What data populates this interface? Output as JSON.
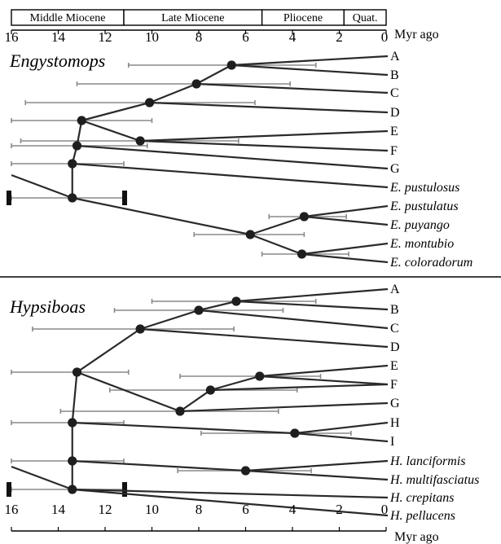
{
  "timescale": {
    "epochs": [
      {
        "name": "Middle Miocene",
        "start": 16,
        "end": 11.2
      },
      {
        "name": "Late Miocene",
        "start": 11.2,
        "end": 5.3
      },
      {
        "name": "Pliocene",
        "start": 5.3,
        "end": 1.8
      },
      {
        "name": "Quat.",
        "start": 1.8,
        "end": 0
      }
    ],
    "ticks": [
      16,
      14,
      12,
      10,
      8,
      6,
      4,
      2,
      0
    ],
    "tick_labels": [
      "16",
      "14",
      "12",
      "10",
      "8",
      "6",
      "4",
      "2",
      "0"
    ],
    "unit": "Myr ago",
    "range": [
      16,
      0
    ]
  },
  "panels": [
    {
      "genus": "Engystomops",
      "tips": [
        {
          "label": "A",
          "italic": false
        },
        {
          "label": "B",
          "italic": false
        },
        {
          "label": "C",
          "italic": false
        },
        {
          "label": "D",
          "italic": false
        },
        {
          "label": "E",
          "italic": false
        },
        {
          "label": "F",
          "italic": false
        },
        {
          "label": "G",
          "italic": false
        },
        {
          "label": "E. pustulosus",
          "italic": true
        },
        {
          "label": "E. pustulatus",
          "italic": true
        },
        {
          "label": "E. puyango",
          "italic": true
        },
        {
          "label": "E. montubio",
          "italic": true
        },
        {
          "label": "E. coloradorum",
          "italic": true
        }
      ],
      "nodes": [
        {
          "age": 6.6,
          "hpd": [
            11.0,
            3.0
          ]
        },
        {
          "age": 8.1,
          "hpd": [
            13.2,
            4.1
          ]
        },
        {
          "age": 10.1,
          "hpd": [
            15.4,
            5.6
          ]
        },
        {
          "age": 13.0,
          "hpd": [
            16.0,
            10.0
          ]
        },
        {
          "age": 10.5,
          "hpd": [
            15.6,
            6.3
          ]
        },
        {
          "age": 13.2,
          "hpd": [
            16.0,
            10.2
          ]
        },
        {
          "age": 13.4,
          "hpd": [
            16.0,
            11.2
          ]
        },
        {
          "age": 13.4,
          "hpd": [
            16.0,
            11.2
          ]
        },
        {
          "age": 3.5,
          "hpd": [
            5.0,
            1.7
          ]
        },
        {
          "age": 5.8,
          "hpd": [
            8.2,
            3.5
          ]
        },
        {
          "age": 3.6,
          "hpd": [
            5.3,
            1.6
          ]
        }
      ]
    },
    {
      "genus": "Hypsiboas",
      "tips": [
        {
          "label": "A",
          "italic": false
        },
        {
          "label": "B",
          "italic": false
        },
        {
          "label": "C",
          "italic": false
        },
        {
          "label": "D",
          "italic": false
        },
        {
          "label": "E",
          "italic": false
        },
        {
          "label": "F",
          "italic": false
        },
        {
          "label": "G",
          "italic": false
        },
        {
          "label": "H",
          "italic": false
        },
        {
          "label": "I",
          "italic": false
        },
        {
          "label": "H. lanciformis",
          "italic": true
        },
        {
          "label": "H. multifasciatus",
          "italic": true
        },
        {
          "label": "H. crepitans",
          "italic": true
        },
        {
          "label": "H. pellucens",
          "italic": true
        }
      ],
      "nodes": [
        {
          "age": 6.4,
          "hpd": [
            10.0,
            3.0
          ]
        },
        {
          "age": 8.0,
          "hpd": [
            11.6,
            4.4
          ]
        },
        {
          "age": 10.5,
          "hpd": [
            15.1,
            6.5
          ]
        },
        {
          "age": 13.2,
          "hpd": [
            16.0,
            11.0
          ]
        },
        {
          "age": 5.4,
          "hpd": [
            8.8,
            2.8
          ]
        },
        {
          "age": 7.5,
          "hpd": [
            11.8,
            3.8
          ]
        },
        {
          "age": 8.8,
          "hpd": [
            13.9,
            4.6
          ]
        },
        {
          "age": 3.9,
          "hpd": [
            7.9,
            1.5
          ]
        },
        {
          "age": 13.4,
          "hpd": [
            16.0,
            11.2
          ]
        },
        {
          "age": 6.0,
          "hpd": [
            8.9,
            3.2
          ]
        },
        {
          "age": 13.4,
          "hpd": [
            16.0,
            11.2
          ]
        },
        {
          "age": 13.4,
          "hpd": [
            16.0,
            11.2
          ]
        }
      ]
    }
  ]
}
